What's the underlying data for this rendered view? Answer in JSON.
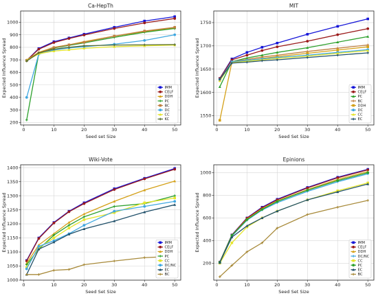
{
  "chart_data": [
    {
      "type": "line",
      "title": "Ca-HepTh",
      "xlabel": "Seed set Size",
      "ylabel": "Expected Influence Spread",
      "x": [
        1,
        5,
        10,
        15,
        20,
        30,
        40,
        50
      ],
      "xlim": [
        -1,
        52
      ],
      "ylim": [
        180,
        1090
      ],
      "xticks": [
        0,
        10,
        20,
        30,
        40,
        50
      ],
      "yticks": [
        200,
        300,
        400,
        500,
        600,
        700,
        800,
        900,
        1000
      ],
      "grid": true,
      "legend_position": "lower-right",
      "series": [
        {
          "name": "IMM",
          "color": "#1515d8",
          "values": [
            695,
            790,
            845,
            875,
            905,
            960,
            1010,
            1045
          ]
        },
        {
          "name": "CELF",
          "color": "#9b1b1b",
          "values": [
            695,
            785,
            838,
            870,
            898,
            950,
            995,
            1030
          ]
        },
        {
          "name": "DDH",
          "color": "#d4a017",
          "values": [
            700,
            760,
            800,
            820,
            845,
            890,
            925,
            955
          ]
        },
        {
          "name": "PC",
          "color": "#2ca02c",
          "values": [
            220,
            750,
            795,
            815,
            835,
            880,
            920,
            950
          ]
        },
        {
          "name": "BC",
          "color": "#bf7f3f",
          "values": [
            695,
            755,
            798,
            820,
            840,
            890,
            930,
            960
          ]
        },
        {
          "name": "DC",
          "color": "#3fa7e0",
          "values": [
            400,
            745,
            778,
            795,
            805,
            825,
            855,
            900
          ]
        },
        {
          "name": "CC",
          "color": "#e5e52b",
          "values": [
            695,
            748,
            770,
            780,
            792,
            805,
            812,
            818
          ]
        },
        {
          "name": "KC",
          "color": "#556b2f",
          "values": [
            690,
            755,
            785,
            800,
            812,
            818,
            820,
            822
          ]
        }
      ]
    },
    {
      "type": "line",
      "title": "MIT",
      "xlabel": "Seed Set Size",
      "ylabel": "Expected Influence Spread",
      "x": [
        1,
        5,
        10,
        15,
        20,
        30,
        40,
        50
      ],
      "xlim": [
        -1,
        52
      ],
      "ylim": [
        1530,
        1775
      ],
      "xticks": [
        0,
        10,
        20,
        30,
        40,
        50
      ],
      "yticks": [
        1550,
        1600,
        1650,
        1700,
        1750
      ],
      "grid": true,
      "legend_position": "lower-right",
      "series": [
        {
          "name": "IMM",
          "color": "#1515d8",
          "values": [
            1630,
            1672,
            1686,
            1697,
            1706,
            1725,
            1742,
            1758
          ]
        },
        {
          "name": "CELF",
          "color": "#9b1b1b",
          "values": [
            1630,
            1670,
            1680,
            1690,
            1698,
            1710,
            1724,
            1737
          ]
        },
        {
          "name": "PC",
          "color": "#2ca02c",
          "values": [
            1612,
            1666,
            1674,
            1680,
            1686,
            1696,
            1708,
            1720
          ]
        },
        {
          "name": "BC",
          "color": "#bf7f3f",
          "values": [
            1625,
            1666,
            1671,
            1676,
            1680,
            1688,
            1695,
            1702
          ]
        },
        {
          "name": "DDH",
          "color": "#d4a017",
          "values": [
            1540,
            1665,
            1669,
            1673,
            1677,
            1684,
            1691,
            1698
          ]
        },
        {
          "name": "DC",
          "color": "#3fa7e0",
          "values": [
            1628,
            1666,
            1669,
            1672,
            1675,
            1680,
            1686,
            1692
          ]
        },
        {
          "name": "CC",
          "color": "#e5e52b",
          "values": [
            1625,
            1664,
            1667,
            1670,
            1673,
            1678,
            1684,
            1690
          ]
        },
        {
          "name": "EC",
          "color": "#20506a",
          "values": [
            1628,
            1663,
            1665,
            1668,
            1670,
            1675,
            1680,
            1685
          ]
        }
      ]
    },
    {
      "type": "line",
      "title": "Wiki-Vote",
      "xlabel": "Seed Set Size",
      "ylabel": "Expected Influence Spread",
      "x": [
        1,
        5,
        10,
        15,
        20,
        30,
        40,
        50
      ],
      "xlim": [
        -1,
        52
      ],
      "ylim": [
        1000,
        1410
      ],
      "xticks": [
        0,
        10,
        20,
        30,
        40,
        50
      ],
      "yticks": [
        1000,
        1050,
        1100,
        1150,
        1200,
        1250,
        1300,
        1350,
        1400
      ],
      "grid": true,
      "legend_position": "lower-right",
      "series": [
        {
          "name": "IMM",
          "color": "#1515d8",
          "values": [
            1070,
            1150,
            1205,
            1245,
            1275,
            1325,
            1362,
            1397
          ]
        },
        {
          "name": "CELF",
          "color": "#9b1b1b",
          "values": [
            1068,
            1148,
            1203,
            1243,
            1272,
            1322,
            1360,
            1394
          ]
        },
        {
          "name": "DDH",
          "color": "#d4a017",
          "values": [
            1060,
            1125,
            1165,
            1205,
            1235,
            1280,
            1320,
            1352
          ]
        },
        {
          "name": "PC",
          "color": "#2ca02c",
          "values": [
            1055,
            1110,
            1160,
            1195,
            1225,
            1262,
            1272,
            1300
          ]
        },
        {
          "name": "CC",
          "color": "#e5e52b",
          "values": [
            1045,
            1115,
            1150,
            1185,
            1215,
            1240,
            1275,
            1292
          ]
        },
        {
          "name": "DC/NC",
          "color": "#3fa7e0",
          "values": [
            1040,
            1120,
            1140,
            1165,
            1195,
            1245,
            1262,
            1280
          ]
        },
        {
          "name": "EC",
          "color": "#20506a",
          "values": [
            1020,
            1110,
            1135,
            1163,
            1182,
            1210,
            1242,
            1268
          ]
        },
        {
          "name": "BC",
          "color": "#a88a3a",
          "values": [
            1020,
            1020,
            1035,
            1038,
            1055,
            1068,
            1080,
            1085
          ]
        }
      ]
    },
    {
      "type": "line",
      "title": "Epinions",
      "xlabel": "Seed Set Size",
      "ylabel": "Expected Influence Spread",
      "x": [
        1,
        5,
        10,
        15,
        20,
        30,
        40,
        50
      ],
      "xlim": [
        -1,
        52
      ],
      "ylim": [
        50,
        1070
      ],
      "xticks": [
        0,
        10,
        20,
        30,
        40,
        50
      ],
      "yticks": [
        200,
        400,
        600,
        800,
        1000
      ],
      "grid": true,
      "legend_position": "lower-right",
      "series": [
        {
          "name": "IMM",
          "color": "#1515d8",
          "values": [
            210,
            450,
            600,
            695,
            765,
            870,
            960,
            1030
          ]
        },
        {
          "name": "CELF",
          "color": "#9b1b1b",
          "values": [
            210,
            448,
            598,
            690,
            760,
            865,
            955,
            1025
          ]
        },
        {
          "name": "DDH",
          "color": "#d4a017",
          "values": [
            208,
            445,
            590,
            680,
            750,
            850,
            940,
            1010
          ]
        },
        {
          "name": "DC/NC",
          "color": "#3fa7e0",
          "values": [
            205,
            440,
            580,
            670,
            735,
            835,
            920,
            990
          ]
        },
        {
          "name": "CC",
          "color": "#e5e52b",
          "values": [
            200,
            380,
            520,
            600,
            660,
            760,
            840,
            910
          ]
        },
        {
          "name": "PC",
          "color": "#2ca02c",
          "values": [
            208,
            445,
            585,
            675,
            745,
            845,
            930,
            1000
          ]
        },
        {
          "name": "EC",
          "color": "#20506a",
          "values": [
            205,
            430,
            530,
            600,
            660,
            760,
            830,
            900
          ]
        },
        {
          "name": "BC",
          "color": "#a88a3a",
          "values": [
            80,
            180,
            300,
            380,
            510,
            630,
            695,
            755
          ]
        }
      ]
    }
  ]
}
